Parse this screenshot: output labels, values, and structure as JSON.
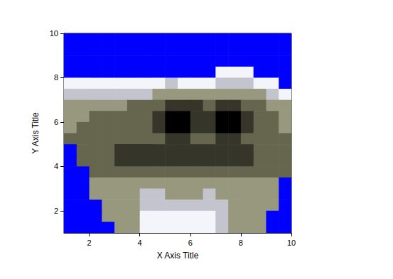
{
  "chart_data": {
    "type": "heatmap",
    "xlabel": "X Axis Title",
    "ylabel": "Y Axis Title",
    "x": [
      1.25,
      1.75,
      2.25,
      2.75,
      3.25,
      3.75,
      4.25,
      4.75,
      5.25,
      5.75,
      6.25,
      6.75,
      7.25,
      7.75,
      8.25,
      8.75,
      9.25,
      9.75
    ],
    "y": [
      9.75,
      9.25,
      8.75,
      8.25,
      7.75,
      7.25,
      6.75,
      6.25,
      5.75,
      5.25,
      4.75,
      4.25,
      3.75,
      3.25,
      2.75,
      2.25,
      1.75,
      1.25
    ],
    "cells": [
      [
        0,
        0,
        0,
        0,
        0,
        0,
        0,
        0,
        0,
        0,
        0,
        0,
        0,
        0,
        0,
        0,
        0,
        0
      ],
      [
        0,
        0,
        0,
        0,
        0,
        0,
        0,
        0,
        0,
        0,
        0,
        0,
        0,
        0,
        0,
        0,
        0,
        0
      ],
      [
        0,
        0,
        0,
        0,
        0,
        0,
        0,
        0,
        0,
        0,
        0,
        0,
        0,
        0,
        0,
        0,
        0,
        0
      ],
      [
        0,
        0,
        0,
        0,
        0,
        0,
        0,
        0,
        0,
        0,
        0,
        0,
        6,
        6,
        6,
        0,
        0,
        0
      ],
      [
        6,
        6,
        6,
        6,
        6,
        6,
        6,
        6,
        5,
        6,
        6,
        6,
        5,
        5,
        5,
        6,
        6,
        0
      ],
      [
        5,
        5,
        5,
        5,
        5,
        5,
        5,
        4,
        4,
        4,
        4,
        4,
        4,
        4,
        4,
        4,
        5,
        6
      ],
      [
        4,
        4,
        4,
        4,
        4,
        3,
        3,
        3,
        2,
        2,
        2,
        3,
        2,
        2,
        3,
        3,
        4,
        4
      ],
      [
        4,
        4,
        3,
        3,
        3,
        3,
        3,
        2,
        1,
        1,
        2,
        2,
        1,
        1,
        2,
        3,
        3,
        4
      ],
      [
        4,
        3,
        3,
        3,
        3,
        3,
        3,
        2,
        1,
        1,
        2,
        2,
        1,
        1,
        2,
        3,
        3,
        4
      ],
      [
        3,
        3,
        3,
        3,
        3,
        3,
        3,
        3,
        2,
        2,
        3,
        3,
        2,
        2,
        3,
        3,
        3,
        3
      ],
      [
        0,
        3,
        3,
        3,
        2,
        2,
        2,
        2,
        2,
        2,
        2,
        2,
        2,
        2,
        2,
        3,
        3,
        3
      ],
      [
        0,
        3,
        3,
        3,
        2,
        2,
        2,
        2,
        2,
        2,
        2,
        2,
        2,
        2,
        2,
        3,
        3,
        3
      ],
      [
        0,
        0,
        3,
        3,
        3,
        3,
        3,
        3,
        3,
        3,
        3,
        3,
        3,
        3,
        3,
        3,
        3,
        3
      ],
      [
        0,
        0,
        4,
        4,
        4,
        4,
        4,
        4,
        4,
        4,
        4,
        4,
        4,
        4,
        4,
        4,
        4,
        0
      ],
      [
        0,
        0,
        4,
        4,
        4,
        4,
        5,
        5,
        4,
        4,
        4,
        5,
        4,
        4,
        4,
        4,
        4,
        0
      ],
      [
        0,
        0,
        0,
        4,
        4,
        4,
        5,
        5,
        5,
        5,
        5,
        5,
        5,
        4,
        4,
        4,
        4,
        0
      ],
      [
        0,
        0,
        0,
        4,
        4,
        4,
        6,
        6,
        6,
        6,
        6,
        6,
        5,
        4,
        4,
        4,
        0,
        0
      ],
      [
        0,
        0,
        0,
        0,
        4,
        4,
        6,
        6,
        6,
        6,
        6,
        6,
        5,
        4,
        4,
        4,
        0,
        0
      ]
    ],
    "zlim": [
      0,
      6
    ],
    "xlim": [
      1,
      10
    ],
    "ylim": [
      1,
      10
    ],
    "xticks": [
      2,
      4,
      6,
      8,
      10
    ],
    "yticks": [
      2,
      4,
      6,
      8,
      10
    ],
    "grid": false
  }
}
